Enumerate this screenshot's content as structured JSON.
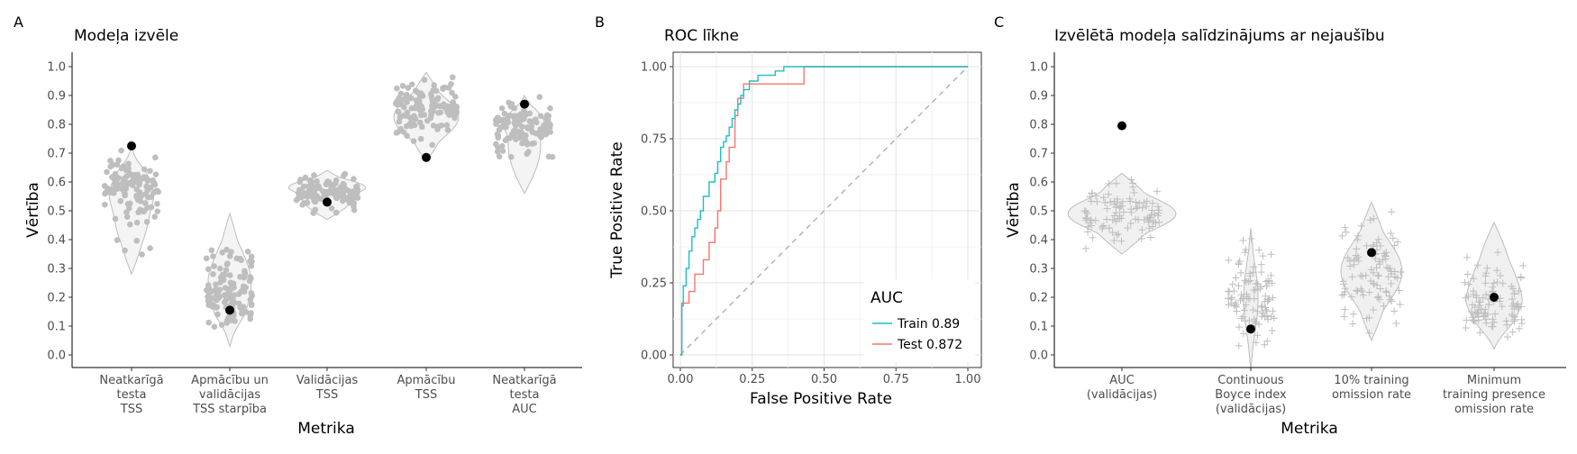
{
  "figure": {
    "panel_tags": [
      "A",
      "B",
      "C"
    ]
  },
  "chart_data": [
    {
      "type": "violin",
      "tag": "A",
      "title": "Modeļa izvēle",
      "xlabel": "Metrika",
      "ylabel": "Vērtība",
      "ylim": [
        0.0,
        1.0
      ],
      "yticks": [
        "0.0",
        "0.1",
        "0.2",
        "0.3",
        "0.4",
        "0.5",
        "0.6",
        "0.7",
        "0.8",
        "0.9",
        "1.0"
      ],
      "grid": false,
      "point_color": "#bebebe",
      "highlight_color": "#000000",
      "categories": [
        {
          "label": [
            "Neatkarīgā",
            "testa",
            "TSS"
          ],
          "range": [
            0.28,
            0.72
          ],
          "selected": 0.725
        },
        {
          "label": [
            "Apmācību un",
            "validācijas",
            "TSS starpība"
          ],
          "range": [
            0.03,
            0.49
          ],
          "selected": 0.155
        },
        {
          "label": [
            "Validācijas",
            "TSS"
          ],
          "range": [
            0.47,
            0.64
          ],
          "selected": 0.53
        },
        {
          "label": [
            "Apmācību",
            "TSS"
          ],
          "range": [
            0.67,
            0.98
          ],
          "selected": 0.685
        },
        {
          "label": [
            "Neatkarīgā",
            "testa",
            "AUC"
          ],
          "range": [
            0.56,
            0.9
          ],
          "selected": 0.87
        }
      ]
    },
    {
      "type": "line",
      "tag": "B",
      "title": "ROC līkne",
      "xlabel": "False Positive Rate",
      "ylabel": "True Positive Rate",
      "xlim": [
        0,
        1
      ],
      "ylim": [
        0,
        1
      ],
      "xticks": [
        "0.00",
        "0.25",
        "0.50",
        "0.75",
        "1.00"
      ],
      "yticks": [
        "0.00",
        "0.25",
        "0.50",
        "0.75",
        "1.00"
      ],
      "grid": true,
      "legend": {
        "title": "AUC",
        "position": "bottom-right"
      },
      "series": [
        {
          "name": "Train 0.89",
          "color": "#1fbfc4",
          "x": [
            0,
            0.005,
            0.005,
            0.01,
            0.01,
            0.02,
            0.02,
            0.03,
            0.03,
            0.04,
            0.04,
            0.05,
            0.05,
            0.06,
            0.06,
            0.07,
            0.07,
            0.08,
            0.08,
            0.1,
            0.1,
            0.12,
            0.12,
            0.13,
            0.13,
            0.14,
            0.14,
            0.15,
            0.15,
            0.16,
            0.16,
            0.17,
            0.17,
            0.18,
            0.18,
            0.19,
            0.19,
            0.2,
            0.2,
            0.21,
            0.21,
            0.22,
            0.22,
            0.24,
            0.24,
            0.27,
            0.27,
            0.3,
            0.3,
            0.33,
            0.33,
            0.36,
            0.36,
            0.43,
            0.43,
            1.0
          ],
          "y": [
            0,
            0,
            0.17,
            0.17,
            0.24,
            0.24,
            0.3,
            0.3,
            0.36,
            0.36,
            0.41,
            0.41,
            0.44,
            0.44,
            0.47,
            0.47,
            0.5,
            0.5,
            0.55,
            0.55,
            0.6,
            0.6,
            0.63,
            0.63,
            0.67,
            0.67,
            0.72,
            0.72,
            0.74,
            0.74,
            0.76,
            0.76,
            0.79,
            0.79,
            0.82,
            0.82,
            0.85,
            0.85,
            0.87,
            0.87,
            0.9,
            0.9,
            0.92,
            0.92,
            0.95,
            0.95,
            0.97,
            0.97,
            0.97,
            0.97,
            0.985,
            0.985,
            1.0,
            1.0,
            1.0,
            1.0
          ]
        },
        {
          "name": "Test 0.872",
          "color": "#f8766d",
          "x": [
            0,
            0.005,
            0.005,
            0.03,
            0.03,
            0.05,
            0.05,
            0.08,
            0.08,
            0.1,
            0.1,
            0.12,
            0.12,
            0.13,
            0.13,
            0.14,
            0.14,
            0.16,
            0.16,
            0.17,
            0.17,
            0.19,
            0.19,
            0.2,
            0.2,
            0.22,
            0.22,
            0.25,
            0.25,
            0.43,
            0.43,
            1.0
          ],
          "y": [
            0,
            0,
            0.18,
            0.18,
            0.22,
            0.22,
            0.28,
            0.28,
            0.33,
            0.33,
            0.39,
            0.39,
            0.44,
            0.44,
            0.5,
            0.5,
            0.61,
            0.61,
            0.67,
            0.67,
            0.72,
            0.72,
            0.83,
            0.83,
            0.89,
            0.89,
            0.94,
            0.94,
            0.94,
            0.94,
            1.0,
            1.0
          ]
        }
      ],
      "reference_line": {
        "from": [
          0,
          0
        ],
        "to": [
          1,
          1
        ],
        "style": "dashed",
        "color": "#b3b3b3"
      }
    },
    {
      "type": "violin",
      "tag": "C",
      "title": "Izvēlētā modeļa salīdzinājums ar nejaušību",
      "xlabel": "Metrika",
      "ylabel": "Vērtība",
      "ylim": [
        0.0,
        1.0
      ],
      "yticks": [
        "0.0",
        "0.1",
        "0.2",
        "0.3",
        "0.4",
        "0.5",
        "0.6",
        "0.7",
        "0.8",
        "0.9",
        "1.0"
      ],
      "grid": false,
      "point_color": "#bebebe",
      "point_shape": "plus",
      "highlight_color": "#000000",
      "categories": [
        {
          "label": [
            "AUC",
            "(validācijas)"
          ],
          "range": [
            0.35,
            0.63
          ],
          "selected": 0.795
        },
        {
          "label": [
            "Continuous",
            "Boyce index",
            "(validācijas)"
          ],
          "range": [
            -0.05,
            0.44
          ],
          "selected": 0.09
        },
        {
          "label": [
            "10% training",
            "omission rate"
          ],
          "range": [
            0.05,
            0.53
          ],
          "selected": 0.355
        },
        {
          "label": [
            "Minimum",
            "training presence",
            "omission rate"
          ],
          "range": [
            0.02,
            0.46
          ],
          "selected": 0.2
        }
      ]
    }
  ]
}
